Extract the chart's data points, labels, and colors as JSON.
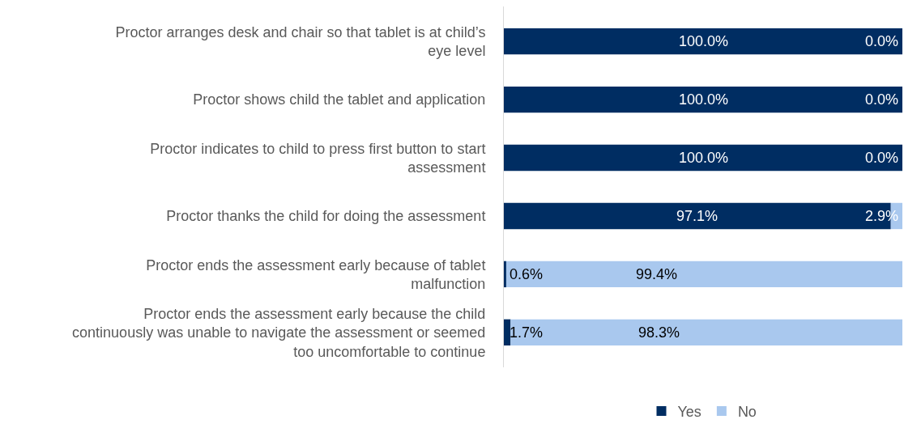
{
  "chart_data": {
    "type": "bar",
    "orientation": "horizontal",
    "stacked": true,
    "categories": [
      "Proctor arranges desk and chair so that tablet is at child’s eye level",
      "Proctor shows child the tablet and application",
      "Proctor indicates to child to press first button to start assessment",
      "Proctor thanks the child for doing the assessment",
      "Proctor ends the assessment early because of tablet malfunction",
      "Proctor ends the assessment early because the child continuously was unable to navigate the assessment or seemed too uncomfortable to continue"
    ],
    "series": [
      {
        "name": "Yes",
        "color": "#002d62",
        "values": [
          100.0,
          100.0,
          100.0,
          97.1,
          0.6,
          1.7
        ],
        "value_labels": [
          "100.0%",
          "100.0%",
          "100.0%",
          "97.1%",
          "0.6%",
          "1.7%"
        ]
      },
      {
        "name": "No",
        "color": "#a9c8ee",
        "values": [
          0.0,
          0.0,
          0.0,
          2.9,
          99.4,
          98.3
        ],
        "value_labels": [
          "0.0%",
          "0.0%",
          "0.0%",
          "2.9%",
          "99.4%",
          "98.3%"
        ]
      }
    ],
    "legend": "bottom",
    "grid": false
  }
}
